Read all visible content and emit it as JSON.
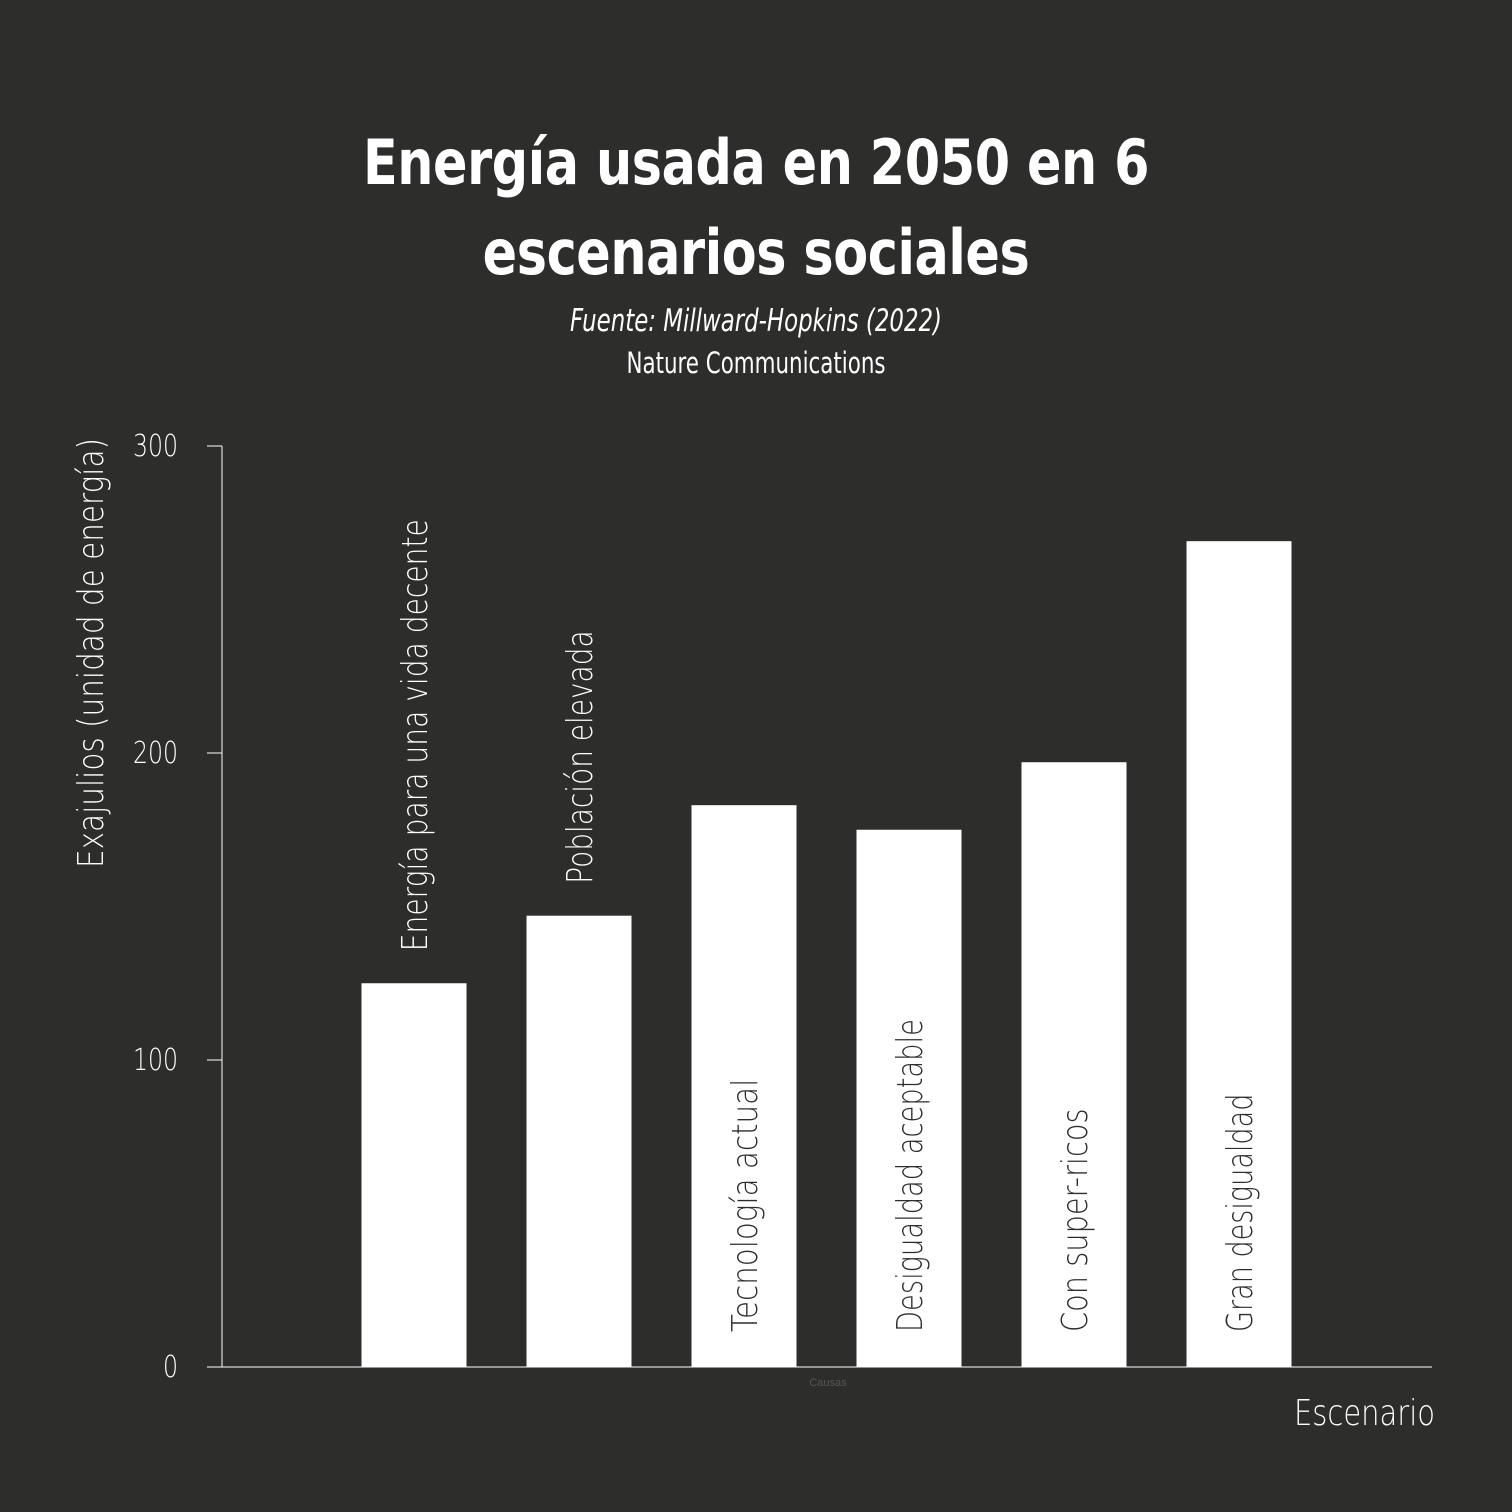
{
  "header": {
    "title_line1": "Energía usada en 2050 en 6",
    "title_line2": "escenarios sociales",
    "source": "Fuente: Millward-Hopkins  (2022)",
    "journal": "Nature Communications"
  },
  "colors": {
    "background": "#2d2e2c",
    "bar": "#ffffff",
    "text": "#ffffff",
    "label_on_bar": "#2d2e2c"
  },
  "chart_data": {
    "type": "bar",
    "title": "Energía usada en 2050 en 6 escenarios sociales",
    "xlabel": "Escenario",
    "ylabel": "Exajulios (unidad de energía)",
    "ylim": [
      0,
      300
    ],
    "yticks": [
      0,
      100,
      200,
      300
    ],
    "grid": false,
    "categories": [
      "Energía para una vida decente",
      "Población elevada",
      "Tecnología actual",
      "Desigualdad aceptable",
      "Con super-ricos",
      "Gran desigualdad"
    ],
    "values": [
      125,
      147,
      183,
      175,
      197,
      269
    ],
    "footnote": "Causas"
  }
}
